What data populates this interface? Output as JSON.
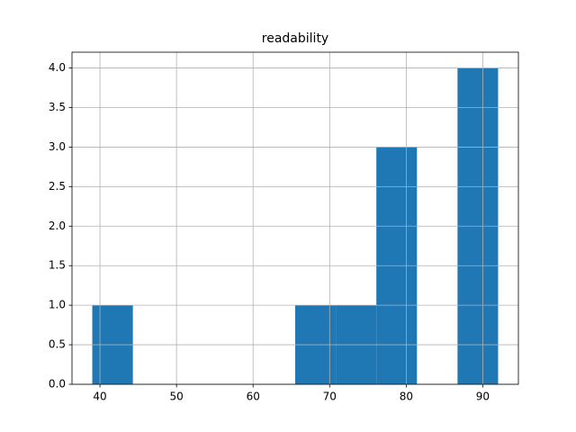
{
  "chart_data": {
    "type": "histogram",
    "title": "readability",
    "bins": [
      39,
      44.3,
      49.6,
      54.9,
      60.2,
      65.5,
      70.8,
      76.1,
      81.4,
      86.7,
      92
    ],
    "counts": [
      1,
      0,
      0,
      0,
      0,
      1,
      1,
      3,
      0,
      4
    ],
    "color": "#1f77b4",
    "xlim": [
      36.35,
      94.65
    ],
    "xticks": [
      40,
      50,
      60,
      70,
      80,
      90
    ],
    "ylim": [
      0,
      4.2
    ],
    "yticks": [
      {
        "value": 0,
        "label": "0.0"
      },
      0.5,
      {
        "value": 1,
        "label": "1.0"
      },
      1.5,
      {
        "value": 2,
        "label": "2.0"
      },
      2.5,
      {
        "value": 3,
        "label": "3.0"
      },
      3.5,
      {
        "value": 4,
        "label": "4.0"
      }
    ],
    "grid": true
  }
}
